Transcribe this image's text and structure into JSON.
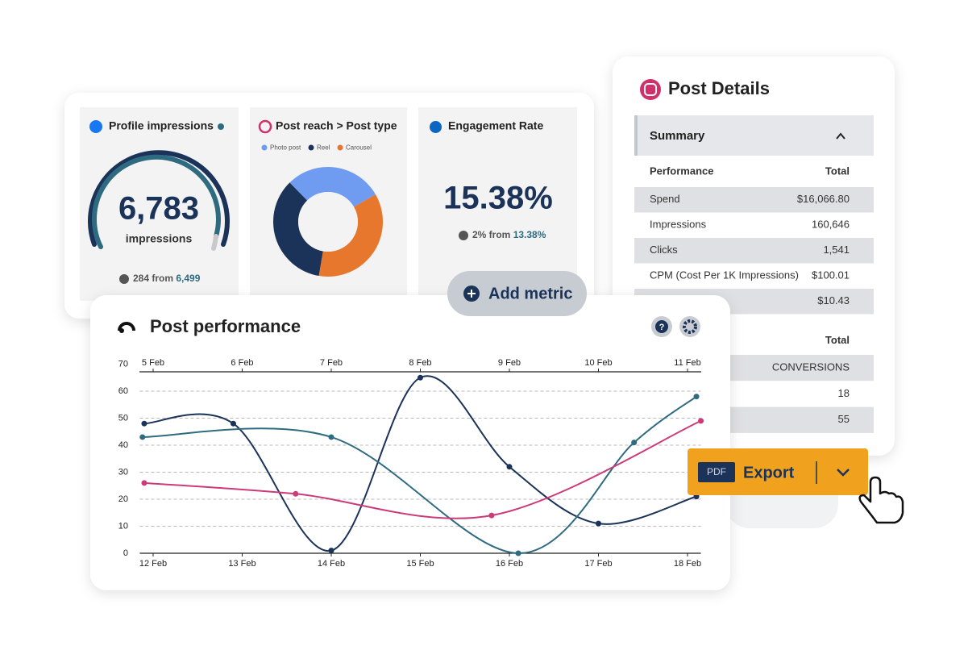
{
  "cards": [
    {
      "title": "Profile impressions",
      "value": "6,783",
      "unit": "impressions",
      "change": "284 from",
      "previous": "6,499"
    },
    {
      "title": "Engagement Rate",
      "value": "15.38%",
      "change": "2% from",
      "previous": "13.38%"
    }
  ],
  "add_metric": "Add metric",
  "post_details": {
    "title": "Post Details",
    "summary": "Summary",
    "sections": [
      {
        "header": [
          "Performance",
          "Total"
        ],
        "rows": [
          [
            "Spend",
            "$16,066.80"
          ],
          [
            "Impressions",
            "160,646"
          ],
          [
            "Clicks",
            "1,541"
          ],
          [
            "CPM (Cost Per 1K Impressions)",
            "$100.01"
          ],
          [
            "$10.43"
          ]
        ]
      },
      {
        "header": [
          "Total"
        ],
        "rows": [
          [
            "CONVERSIONS"
          ],
          [
            "18"
          ],
          [
            "55"
          ]
        ]
      }
    ]
  },
  "export": {
    "format": "PDF",
    "label": "Export"
  },
  "chart_data": [
    {
      "type": "line",
      "title": "Post performance",
      "xlim": [
        -0.15,
        6.15
      ],
      "xticks": [
        {
          "value": 0,
          "label": "12 Feb"
        },
        {
          "value": 1,
          "label": "13 Feb"
        },
        {
          "value": 2,
          "label": "14 Feb"
        },
        {
          "value": 3,
          "label": "15 Feb"
        },
        {
          "value": 4,
          "label": "16 Feb"
        },
        {
          "value": 5,
          "label": "17 Feb"
        },
        {
          "value": 6,
          "label": "18 Feb"
        }
      ],
      "x2ticks": [
        {
          "value": 0,
          "label": "5 Feb"
        },
        {
          "value": 1,
          "label": "6 Feb"
        },
        {
          "value": 2,
          "label": "7 Feb"
        },
        {
          "value": 3,
          "label": "8 Feb"
        },
        {
          "value": 4,
          "label": "9 Feb"
        },
        {
          "value": 5,
          "label": "10 Feb"
        },
        {
          "value": 6,
          "label": "11 Feb"
        }
      ],
      "ylim": [
        0,
        70
      ],
      "yticks": [
        0,
        10,
        20,
        30,
        40,
        50,
        60,
        70
      ],
      "grid": true,
      "series": [
        {
          "color": "#1b3358",
          "x": [
            -0.1,
            0.9,
            2.0,
            3.0,
            4.0,
            5.0,
            6.1
          ],
          "values": [
            48,
            48,
            1,
            65,
            32,
            11,
            21
          ]
        },
        {
          "color": "#2f6b80",
          "x": [
            -0.12,
            2.0,
            4.1,
            5.4,
            6.1
          ],
          "values": [
            43,
            43,
            0,
            41,
            58
          ]
        },
        {
          "color": "#cc3a7a",
          "x": [
            -0.1,
            1.6,
            3.8,
            6.15
          ],
          "values": [
            26,
            22,
            14,
            49
          ]
        }
      ]
    },
    {
      "type": "pie",
      "title": "Post reach > Post type",
      "categories": [
        "Photo post",
        "Reel",
        "Carousel"
      ],
      "values": [
        29,
        35,
        36
      ],
      "colors": [
        "#6f9cf0",
        "#1b3358",
        "#e8772e"
      ]
    }
  ]
}
